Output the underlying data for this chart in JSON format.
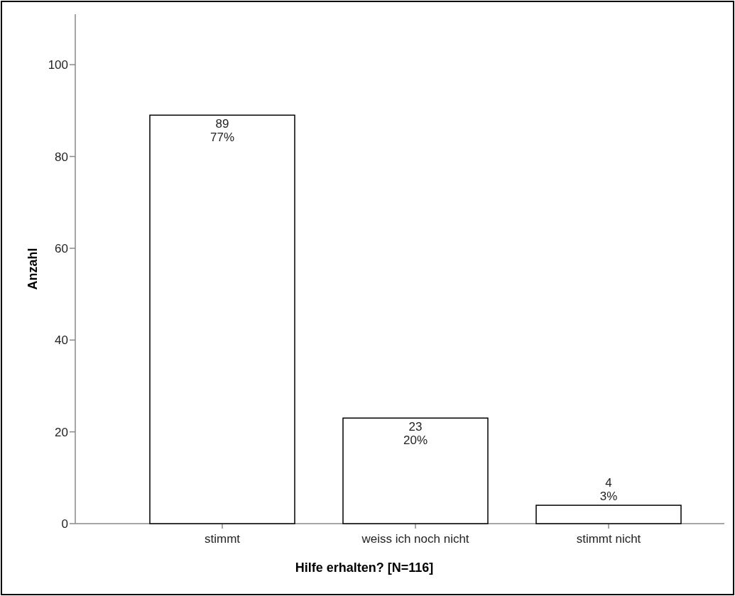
{
  "chart_data": {
    "type": "bar",
    "xlabel": "Hilfe erhalten? [N=116]",
    "ylabel": "Anzahl",
    "categories": [
      "stimmt",
      "weiss ich noch nicht",
      "stimmt nicht"
    ],
    "values": [
      89,
      23,
      4
    ],
    "color": "#ffffff",
    "value_labels": [
      "89\n77%",
      "23\n20%",
      "4\n3%"
    ],
    "ylim": [
      0,
      111
    ],
    "yticks": [
      0,
      20,
      40,
      60,
      80,
      100
    ],
    "grid": false
  }
}
